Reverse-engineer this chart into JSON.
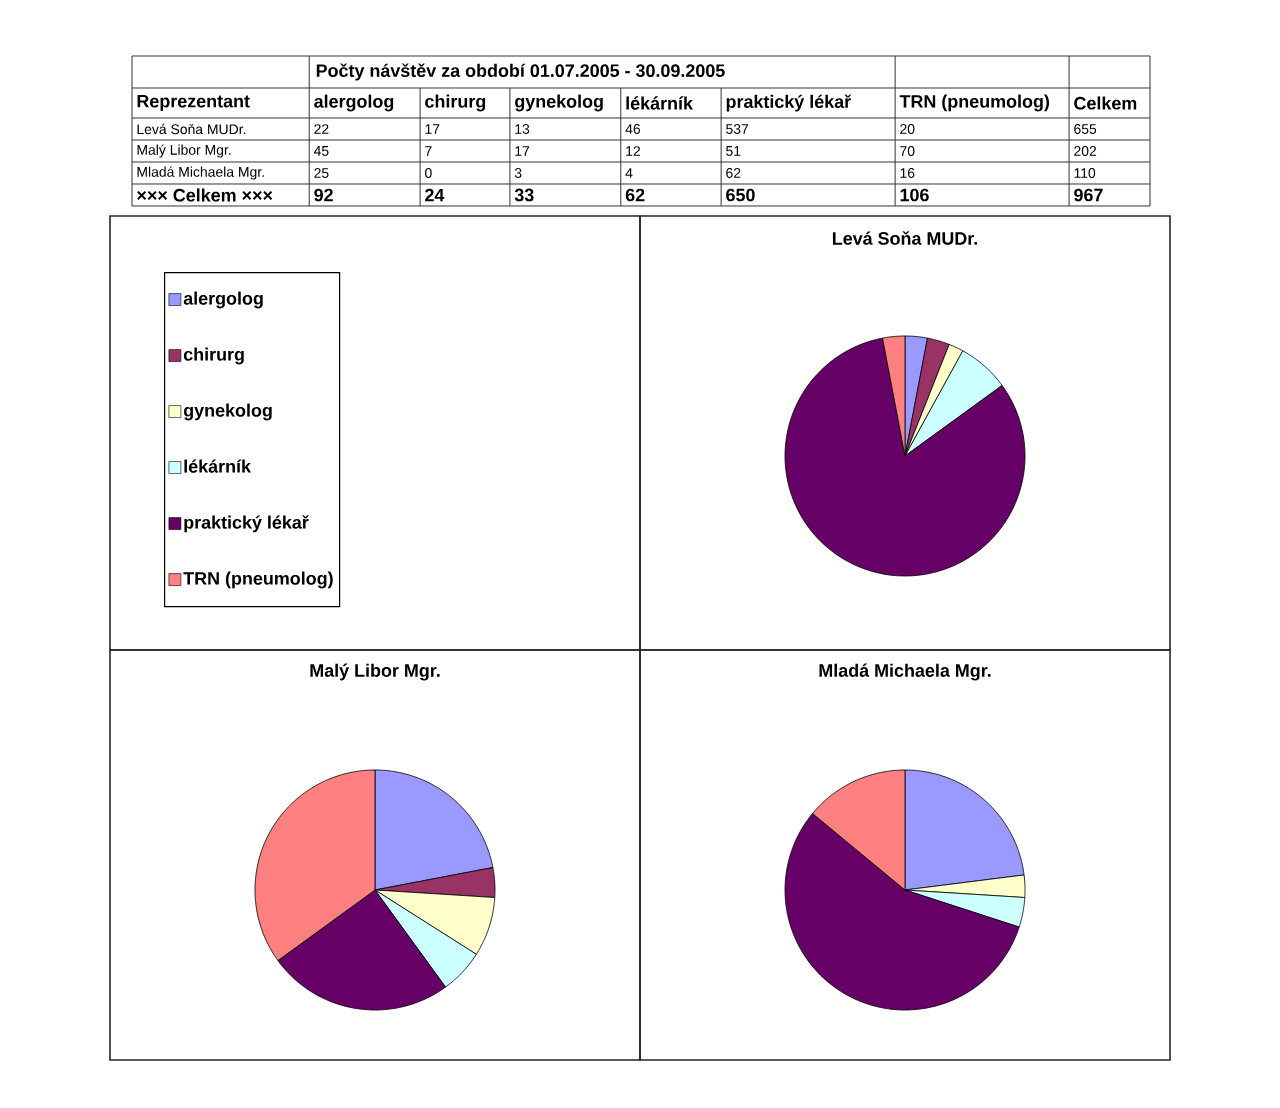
{
  "chart_data": [
    {
      "type": "heatmap",
      "title": "Počty návštěv za období 01.07.2005 - 30.09.2005",
      "ylabel": "Reprezentant",
      "categories": [
        "alergolog",
        "chirurg",
        "gynekolog",
        "lékárník",
        "praktický lékař",
        "TRN (pneumolog)",
        "Celkem"
      ],
      "y_categories": [
        "Levá Soňa MUDr.",
        "Malý Libor Mgr.",
        "Mladá Michaela Mgr.",
        "××× Celkem ×××"
      ],
      "cells": [
        [
          22,
          17,
          13,
          46,
          537,
          20,
          655
        ],
        [
          45,
          7,
          17,
          12,
          51,
          70,
          202
        ],
        [
          25,
          0,
          3,
          4,
          62,
          16,
          110
        ],
        [
          92,
          24,
          33,
          62,
          650,
          106,
          967
        ]
      ],
      "data_labels": true
    },
    {
      "type": "pie",
      "title": "Levá Soňa MUDr.",
      "categories": [
        "alergolog",
        "chirurg",
        "gynekolog",
        "lékárník",
        "praktický lékař",
        "TRN (pneumolog)"
      ],
      "values": [
        3,
        3,
        2,
        7,
        82,
        3
      ],
      "colors": [
        "#9999ff",
        "#993366",
        "#ffffcc",
        "#ccffff",
        "#660066",
        "#ff8080"
      ],
      "legend": "left"
    },
    {
      "type": "pie",
      "title": "Malý Libor Mgr.",
      "categories": [
        null,
        null,
        null,
        null,
        null,
        null
      ],
      "values": [
        22,
        4,
        8,
        6,
        25,
        35
      ],
      "colors": [
        "#9999ff",
        "#993366",
        "#ffffcc",
        "#ccffff",
        "#660066",
        "#ff8080"
      ]
    },
    {
      "type": "pie",
      "title": "Mladá Michaela Mgr.",
      "categories": [
        null,
        null,
        null,
        null,
        null,
        null
      ],
      "values": [
        23,
        0,
        3,
        4,
        56,
        14
      ],
      "colors": [
        "#9999ff",
        "#993366",
        "#ffffcc",
        "#ccffff",
        "#660066",
        "#ff8080"
      ]
    }
  ]
}
